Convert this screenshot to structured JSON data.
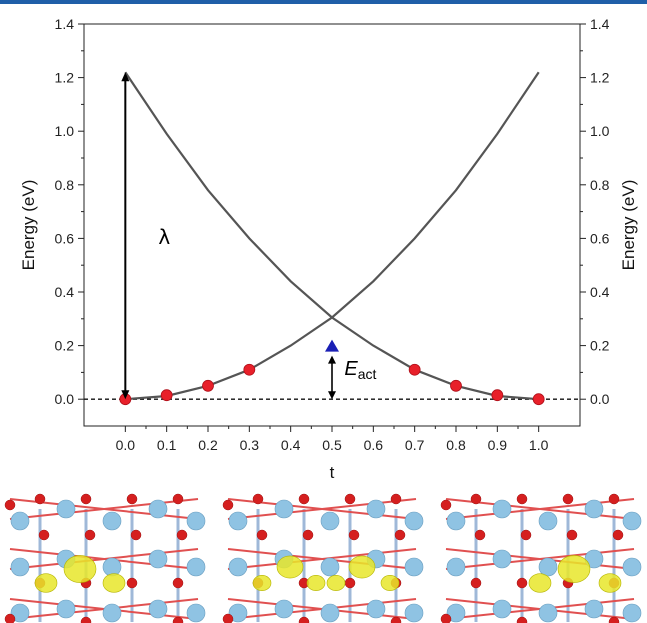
{
  "theme": {
    "accent": "#1f5fa8",
    "curve": "#555555",
    "point": "#e8202a",
    "ts_marker": "#1a1fb5",
    "atom_ti": "#8fc3e3",
    "atom_o": "#d51f1f",
    "isosurface": "#e7e62a"
  },
  "chart_data": {
    "type": "line",
    "xlabel": "t",
    "ylabel_left": "Energy (eV)",
    "ylabel_right": "Energy (eV)",
    "xlim": [
      -0.1,
      1.1
    ],
    "ylim": [
      -0.1,
      1.4
    ],
    "xticks": [
      "0.0",
      "0.1",
      "0.2",
      "0.3",
      "0.4",
      "0.5",
      "0.6",
      "0.7",
      "0.8",
      "0.9",
      "1.0"
    ],
    "yticks": [
      "0.0",
      "0.2",
      "0.4",
      "0.6",
      "0.8",
      "1.0",
      "1.2",
      "1.4"
    ],
    "series": [
      {
        "x": [
          0,
          0.1,
          0.2,
          0.3,
          0.4,
          0.5,
          0.6,
          0.7,
          0.8,
          0.9,
          1.0
        ],
        "values": [
          1.22,
          0.99,
          0.78,
          0.6,
          0.44,
          0.305,
          0.2,
          0.11,
          0.05,
          0.012,
          0.0
        ]
      },
      {
        "x": [
          0,
          0.1,
          0.2,
          0.3,
          0.4,
          0.5,
          0.6,
          0.7,
          0.8,
          0.9,
          1.0
        ],
        "values": [
          0.0,
          0.012,
          0.05,
          0.11,
          0.2,
          0.305,
          0.44,
          0.6,
          0.78,
          0.99,
          1.22
        ]
      }
    ],
    "points": {
      "x": [
        0,
        0.1,
        0.2,
        0.3,
        0.7,
        0.8,
        0.9,
        1.0
      ],
      "y": [
        0.0,
        0.015,
        0.05,
        0.11,
        0.11,
        0.05,
        0.015,
        0.0
      ]
    },
    "ts_marker": {
      "x": 0.5,
      "y": 0.2
    },
    "baseline": 0.0,
    "annotations": {
      "lambda": {
        "label": "λ",
        "x": 0.0,
        "from": 0.0,
        "to": 1.22,
        "label_x": 0.08,
        "label_y": 0.58
      },
      "eact": {
        "label": "E",
        "subscript": "act",
        "x": 0.5,
        "from": 0.0,
        "to": 0.2,
        "label_x": 0.53,
        "label_y": 0.09
      }
    }
  },
  "panels": [
    {
      "name": "initial-state",
      "spots": [
        "left-center"
      ]
    },
    {
      "name": "transition-state",
      "spots": [
        "left",
        "right"
      ]
    },
    {
      "name": "final-state",
      "spots": [
        "right-center"
      ]
    }
  ]
}
